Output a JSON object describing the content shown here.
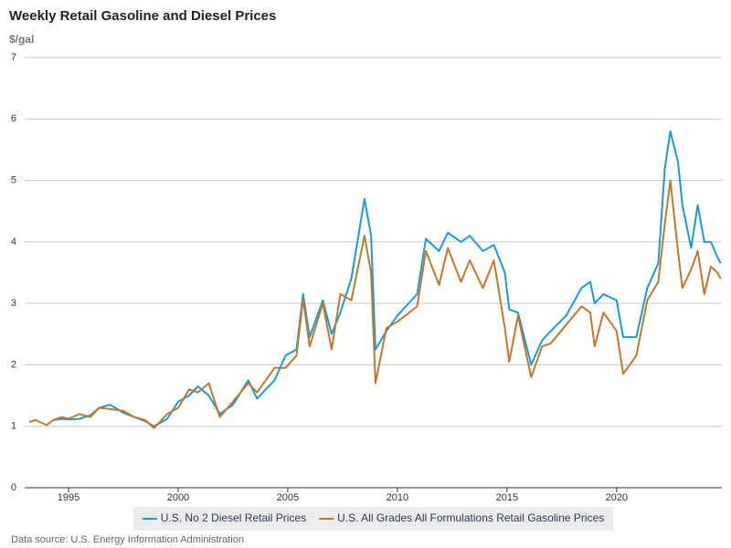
{
  "chart_data": {
    "type": "line",
    "title": "Weekly Retail Gasoline and Diesel Prices",
    "y_unit_label": "$/gal",
    "source": "Data source: U.S. Energy Information Administration",
    "grid": true,
    "xlim": [
      1993,
      2024.8
    ],
    "xticks": [
      1995,
      2000,
      2005,
      2010,
      2015,
      2020
    ],
    "ylim": [
      0,
      7
    ],
    "yticks": [
      0,
      1,
      2,
      3,
      4,
      5,
      6,
      7
    ],
    "x": [
      1993.2,
      1993.5,
      1994.0,
      1994.3,
      1994.7,
      1995.0,
      1995.5,
      1996.0,
      1996.4,
      1996.9,
      1997.5,
      1998.0,
      1998.5,
      1998.9,
      1999.5,
      2000.0,
      2000.5,
      2000.9,
      2001.4,
      2001.9,
      2002.5,
      2003.2,
      2003.6,
      2004.4,
      2004.9,
      2005.4,
      2005.7,
      2006.0,
      2006.6,
      2007.0,
      2007.4,
      2007.9,
      2008.5,
      2008.8,
      2009.0,
      2009.5,
      2010.0,
      2010.9,
      2011.3,
      2011.9,
      2012.3,
      2012.9,
      2013.3,
      2013.9,
      2014.4,
      2014.9,
      2015.1,
      2015.5,
      2016.1,
      2016.6,
      2017.0,
      2017.7,
      2018.4,
      2018.8,
      2019.0,
      2019.4,
      2020.0,
      2020.3,
      2020.9,
      2021.4,
      2021.9,
      2022.2,
      2022.45,
      2022.8,
      2023.0,
      2023.4,
      2023.7,
      2024.0,
      2024.3,
      2024.6,
      2024.75
    ],
    "series": [
      {
        "name": "U.S. No 2 Diesel Retail Prices",
        "color": "#1a9bd7",
        "values": [
          null,
          null,
          null,
          1.1,
          1.12,
          1.11,
          1.12,
          1.18,
          1.3,
          1.35,
          1.22,
          1.15,
          1.08,
          1.0,
          1.12,
          1.4,
          1.5,
          1.65,
          1.5,
          1.2,
          1.35,
          1.75,
          1.45,
          1.75,
          2.15,
          2.25,
          3.15,
          2.45,
          3.05,
          2.5,
          2.85,
          3.4,
          4.7,
          4.1,
          2.25,
          2.55,
          2.8,
          3.15,
          4.05,
          3.85,
          4.15,
          4.0,
          4.1,
          3.85,
          3.95,
          3.5,
          2.9,
          2.85,
          2.0,
          2.4,
          2.55,
          2.8,
          3.25,
          3.35,
          3.0,
          3.15,
          3.05,
          2.45,
          2.45,
          3.25,
          3.65,
          5.2,
          5.8,
          5.3,
          4.6,
          3.9,
          4.6,
          4.0,
          4.0,
          3.75,
          3.65
        ]
      },
      {
        "name": "U.S. All Grades All Formulations Retail Gasoline Prices",
        "color": "#c0782c",
        "values": [
          1.07,
          1.1,
          1.02,
          1.1,
          1.15,
          1.12,
          1.2,
          1.15,
          1.3,
          1.28,
          1.25,
          1.15,
          1.1,
          0.97,
          1.2,
          1.3,
          1.6,
          1.55,
          1.7,
          1.15,
          1.4,
          1.7,
          1.55,
          1.95,
          1.95,
          2.15,
          3.07,
          2.3,
          3.0,
          2.25,
          3.15,
          3.05,
          4.1,
          3.5,
          1.7,
          2.6,
          2.7,
          2.95,
          3.85,
          3.3,
          3.9,
          3.35,
          3.7,
          3.25,
          3.7,
          2.6,
          2.05,
          2.8,
          1.8,
          2.3,
          2.35,
          2.65,
          2.95,
          2.85,
          2.3,
          2.85,
          2.55,
          1.85,
          2.15,
          3.05,
          3.35,
          4.3,
          5.0,
          3.85,
          3.25,
          3.55,
          3.85,
          3.15,
          3.6,
          3.5,
          3.4
        ]
      }
    ]
  }
}
